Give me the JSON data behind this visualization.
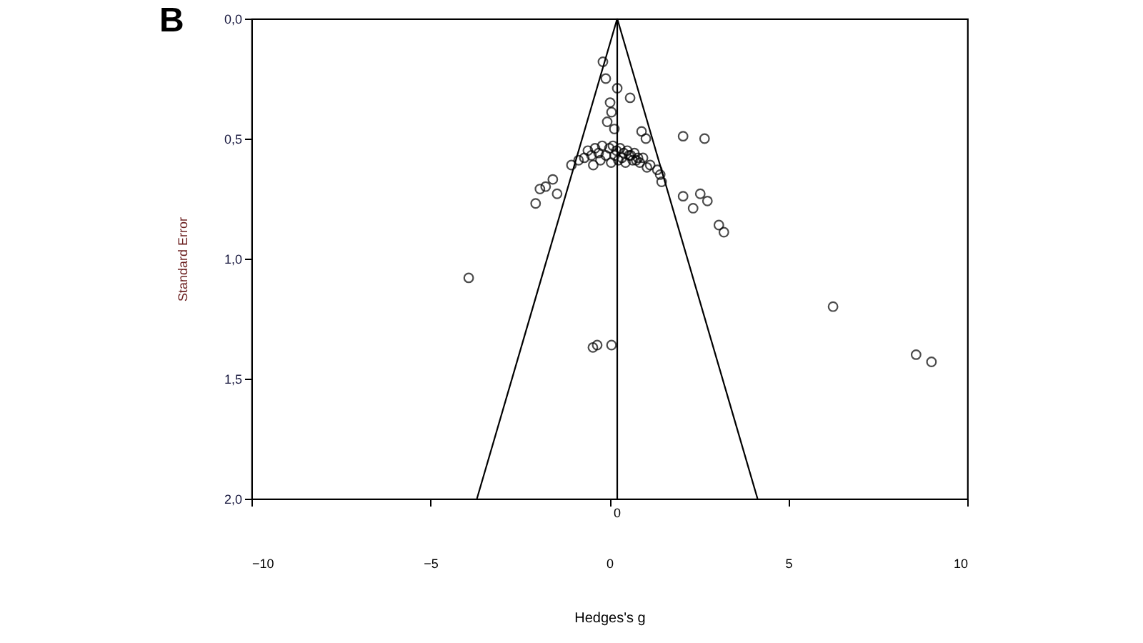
{
  "chart_data": {
    "type": "scatter",
    "title": "B",
    "xlabel": "Hedges's g",
    "ylabel": "Standard Error",
    "xlim": [
      -10,
      10
    ],
    "xticks": [
      -10,
      -5,
      0,
      5,
      10
    ],
    "ylim": [
      2.0,
      0.0
    ],
    "yticks": [
      {
        "value": 0.0,
        "label": "0,0"
      },
      {
        "value": 0.5,
        "label": "0,5"
      },
      {
        "value": 1.0,
        "label": "1,0"
      },
      {
        "value": 1.5,
        "label": "1,5"
      },
      {
        "value": 2.0,
        "label": "2,0"
      }
    ],
    "grid": false,
    "marker": "circle",
    "ref_lines": [
      {
        "axis": "x",
        "value": 0.22,
        "label": "0",
        "color": "#000000"
      }
    ],
    "series": [
      {
        "color": "#000000",
        "x": [
          -0.18,
          -0.1,
          0.22,
          0.58,
          0.02,
          0.06,
          -0.06,
          0.14,
          1.02,
          0.9,
          2.06,
          2.66,
          -0.86,
          -1.06,
          -1.58,
          -1.78,
          -1.94,
          -1.46,
          -2.06,
          0.94,
          1.14,
          1.34,
          1.42,
          1.46,
          2.06,
          2.54,
          2.34,
          2.74,
          3.06,
          3.2,
          -3.93,
          6.25,
          8.57,
          9.0,
          -0.46,
          -0.34,
          0.06,
          -0.6,
          -0.4,
          -0.2,
          0.0,
          0.1,
          0.2,
          0.3,
          0.4,
          0.5,
          0.6,
          0.7,
          0.8,
          -0.5,
          -0.3,
          -0.1,
          0.15,
          0.35,
          0.55,
          0.75,
          -0.7,
          -0.25,
          0.25,
          0.45,
          0.65,
          0.85,
          1.05,
          -0.45,
          0.05
        ],
        "values": [
          0.18,
          0.25,
          0.29,
          0.33,
          0.35,
          0.39,
          0.43,
          0.46,
          0.5,
          0.47,
          0.49,
          0.5,
          0.59,
          0.61,
          0.67,
          0.7,
          0.71,
          0.73,
          0.77,
          0.58,
          0.61,
          0.63,
          0.65,
          0.68,
          0.74,
          0.73,
          0.79,
          0.76,
          0.86,
          0.89,
          1.08,
          1.2,
          1.4,
          1.43,
          1.37,
          1.36,
          1.36,
          0.55,
          0.54,
          0.53,
          0.54,
          0.53,
          0.55,
          0.54,
          0.56,
          0.55,
          0.57,
          0.56,
          0.58,
          0.57,
          0.56,
          0.57,
          0.57,
          0.58,
          0.57,
          0.59,
          0.58,
          0.59,
          0.59,
          0.6,
          0.59,
          0.6,
          0.62,
          0.61,
          0.6
        ]
      },
      {
        "type": "line",
        "marker": "none",
        "color": "#000000",
        "x": [
          0.22,
          -3.7
        ],
        "values": [
          0.0,
          2.0
        ]
      },
      {
        "type": "line",
        "marker": "none",
        "color": "#000000",
        "x": [
          0.22,
          4.14
        ],
        "values": [
          0.0,
          2.0
        ]
      }
    ]
  }
}
